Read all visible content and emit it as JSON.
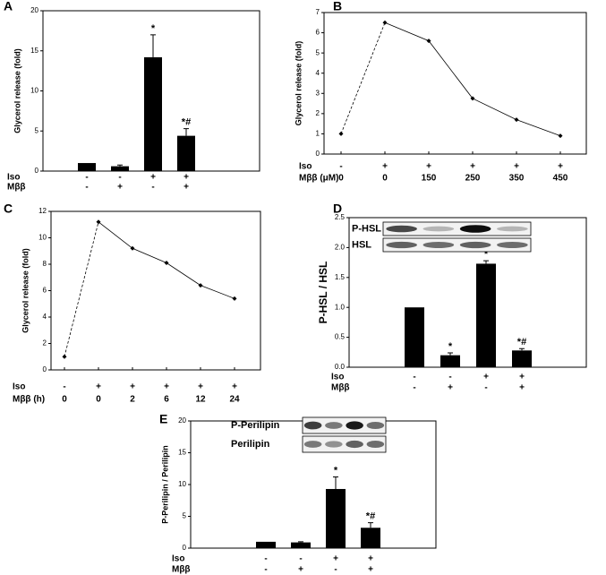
{
  "chart_data": [
    {
      "type": "bar",
      "panel_label": "A",
      "y_label": "Glycerol  release (fold)",
      "categories": [
        null,
        null,
        null,
        null
      ],
      "values": [
        1,
        0.6,
        14.2,
        4.4
      ],
      "errors": [
        null,
        0.15,
        2.8,
        0.9
      ],
      "markers": [
        null,
        null,
        "*",
        "*#"
      ],
      "color": "#000000",
      "ylim": [
        0,
        20
      ],
      "yticks": [
        0,
        5,
        10,
        15,
        20
      ],
      "conditions": [
        {
          "name": "Iso",
          "labels": [
            "-",
            "-",
            "+",
            "+"
          ]
        },
        {
          "name": "Mββ",
          "labels": [
            "-",
            "+",
            "-",
            "+"
          ]
        }
      ]
    },
    {
      "type": "line",
      "panel_label": "B",
      "y_label": "Glycerol  release (fold)",
      "categories": [
        null,
        null,
        null,
        null,
        null,
        null
      ],
      "values": [
        1,
        6.5,
        5.6,
        2.75,
        1.7,
        0.9
      ],
      "first_segment_dashed": true,
      "color": "#000000",
      "ylim": [
        0,
        7
      ],
      "yticks": [
        0,
        1,
        2,
        3,
        4,
        5,
        6,
        7
      ],
      "conditions": [
        {
          "name": "Iso",
          "labels": [
            "-",
            "+",
            "+",
            "+",
            "+",
            "+"
          ]
        },
        {
          "name": "Mββ (μM)",
          "labels": [
            "0",
            "0",
            "150",
            "250",
            "350",
            "450"
          ]
        }
      ]
    },
    {
      "type": "line",
      "panel_label": "C",
      "y_label": "Glycerol  release (fold)",
      "categories": [
        null,
        null,
        null,
        null,
        null,
        null
      ],
      "values": [
        1,
        11.2,
        9.2,
        8.1,
        6.4,
        5.4
      ],
      "first_segment_dashed": true,
      "color": "#000000",
      "ylim": [
        0,
        12
      ],
      "yticks": [
        0,
        2,
        4,
        6,
        8,
        10,
        12
      ],
      "conditions": [
        {
          "name": "Iso",
          "labels": [
            "-",
            "+",
            "+",
            "+",
            "+",
            "+"
          ]
        },
        {
          "name": "Mββ (h)",
          "labels": [
            "0",
            "0",
            "2",
            "6",
            "12",
            "24"
          ]
        }
      ]
    },
    {
      "type": "bar",
      "panel_label": "D",
      "y_label": "P-HSL / HSL",
      "categories": [
        null,
        null,
        null,
        null
      ],
      "values": [
        1,
        0.2,
        1.73,
        0.28
      ],
      "errors": [
        null,
        0.04,
        0.05,
        0.03
      ],
      "markers": [
        null,
        "*",
        "*",
        "*#"
      ],
      "color": "#000000",
      "ylim": [
        0,
        2.5
      ],
      "yticks": [
        {
          "value": 0,
          "label": "0.0"
        },
        0.5,
        {
          "value": 1,
          "label": "1.0"
        },
        1.5,
        {
          "value": 2,
          "label": "2.0"
        },
        2.5
      ],
      "blot_labels": [
        "P-HSL",
        "HSL"
      ],
      "conditions": [
        {
          "name": "Iso",
          "labels": [
            "-",
            "-",
            "+",
            "+"
          ]
        },
        {
          "name": "Mββ",
          "labels": [
            "-",
            "+",
            "-",
            "+"
          ]
        }
      ]
    },
    {
      "type": "bar",
      "panel_label": "E",
      "y_label": "P-Perilipin  / Perilipin",
      "categories": [
        null,
        null,
        null,
        null
      ],
      "values": [
        1,
        0.9,
        9.3,
        3.2
      ],
      "errors": [
        null,
        0.1,
        1.9,
        0.8
      ],
      "markers": [
        null,
        null,
        "*",
        "*#"
      ],
      "color": "#000000",
      "ylim": [
        0,
        20
      ],
      "yticks": [
        0,
        5,
        10,
        15,
        20
      ],
      "blot_labels": [
        "P-Perilipin",
        "Perilipin"
      ],
      "conditions": [
        {
          "name": "Iso",
          "labels": [
            "-",
            "-",
            "+",
            "+"
          ]
        },
        {
          "name": "Mββ",
          "labels": [
            "-",
            "+",
            "-",
            "+"
          ]
        }
      ]
    }
  ]
}
